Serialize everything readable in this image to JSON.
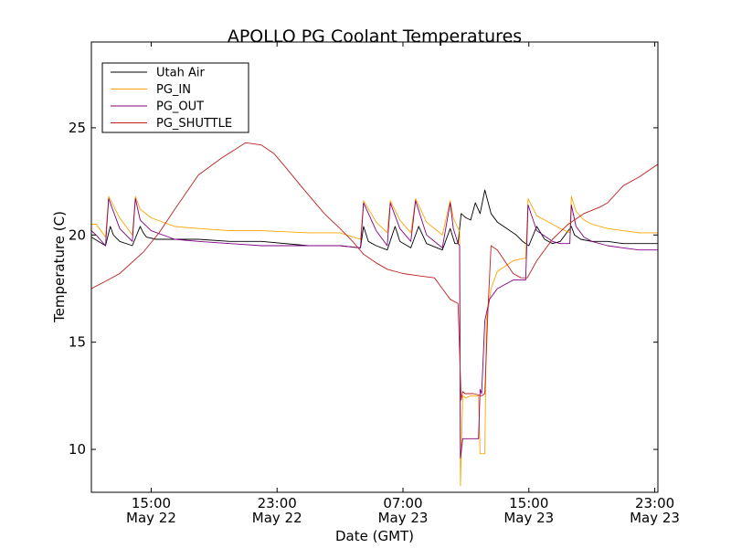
{
  "chart_data": {
    "type": "line",
    "title": "APOLLO PG Coolant Temperatures",
    "xlabel": "Date (GMT)",
    "ylabel": "Temperature (C)",
    "x_unit": "hours since May 22 00:00 GMT",
    "xlim": [
      11.2,
      47.2
    ],
    "ylim": [
      8,
      29
    ],
    "grid": false,
    "legend_position": "top-left",
    "xticks": [
      {
        "value": 15,
        "time": "15:00",
        "date": "May 22"
      },
      {
        "value": 23,
        "time": "23:00",
        "date": "May 22"
      },
      {
        "value": 31,
        "time": "07:00",
        "date": "May 23"
      },
      {
        "value": 39,
        "time": "15:00",
        "date": "May 23"
      },
      {
        "value": 47,
        "time": "23:00",
        "date": "May 23"
      }
    ],
    "yticks": [
      {
        "value": 10,
        "label": "10"
      },
      {
        "value": 15,
        "label": "15"
      },
      {
        "value": 20,
        "label": "20"
      },
      {
        "value": 25,
        "label": "25"
      }
    ],
    "series": [
      {
        "name": "Utah Air",
        "color": "#000000",
        "x": [
          11.2,
          12.1,
          12.4,
          12.6,
          13.0,
          13.8,
          14.3,
          14.5,
          14.7,
          15.3,
          16.5,
          18.0,
          20.0,
          22.0,
          25.0,
          27.0,
          28.3,
          28.5,
          28.8,
          29.3,
          30.0,
          30.5,
          30.8,
          31.5,
          32.0,
          32.5,
          33.5,
          34.0,
          34.3,
          34.5,
          34.7,
          35.0,
          35.3,
          35.6,
          35.9,
          36.2,
          36.6,
          37.0,
          37.6,
          38.2,
          38.6,
          38.8,
          39.0,
          39.5,
          40.0,
          40.5,
          41.0,
          41.7,
          41.9,
          42.3,
          43.0,
          44.0,
          45.0,
          46.0,
          47.2
        ],
        "y": [
          19.9,
          19.5,
          20.4,
          20.0,
          19.7,
          19.5,
          20.4,
          20.1,
          19.9,
          19.8,
          19.8,
          19.8,
          19.7,
          19.7,
          19.5,
          19.5,
          19.4,
          20.4,
          19.7,
          19.5,
          19.3,
          20.4,
          19.7,
          19.4,
          20.4,
          19.6,
          19.3,
          20.3,
          19.6,
          19.6,
          21.0,
          20.8,
          20.7,
          21.5,
          21.0,
          22.1,
          21.0,
          20.6,
          20.3,
          20.0,
          19.7,
          19.6,
          19.5,
          20.4,
          19.8,
          19.6,
          19.7,
          20.4,
          20.0,
          19.8,
          19.7,
          19.7,
          19.6,
          19.6,
          19.6
        ]
      },
      {
        "name": "PG_IN",
        "color": "#ffa500",
        "x": [
          11.2,
          11.5,
          12.1,
          12.3,
          13.0,
          13.8,
          14.0,
          14.3,
          15.0,
          16.5,
          18.0,
          20.0,
          22.0,
          25.0,
          27.0,
          28.3,
          28.5,
          29.3,
          30.0,
          30.2,
          30.8,
          31.5,
          31.8,
          32.5,
          33.5,
          34.0,
          34.2,
          34.5,
          34.6,
          34.65,
          34.8,
          35.0,
          35.3,
          35.8,
          35.9,
          36.0,
          36.2,
          36.3,
          36.6,
          37.0,
          38.0,
          38.6,
          38.8,
          38.95,
          39.5,
          40.5,
          41.0,
          41.6,
          41.7,
          42.0,
          42.5,
          43.0,
          44.0,
          45.0,
          46.0,
          47.2
        ],
        "y": [
          20.5,
          20.5,
          19.9,
          21.8,
          20.8,
          20.0,
          21.8,
          21.2,
          20.8,
          20.4,
          20.3,
          20.2,
          20.2,
          20.1,
          20.1,
          19.8,
          21.6,
          20.6,
          20.1,
          21.6,
          20.7,
          20.1,
          21.7,
          20.6,
          20.0,
          21.6,
          20.8,
          20.3,
          20.2,
          8.3,
          12.5,
          12.4,
          12.5,
          12.5,
          9.8,
          9.8,
          9.8,
          16.0,
          17.5,
          18.3,
          18.8,
          18.9,
          18.9,
          21.7,
          20.9,
          20.5,
          20.3,
          20.1,
          21.8,
          21.1,
          20.7,
          20.5,
          20.3,
          20.2,
          20.1,
          20.1
        ]
      },
      {
        "name": "PG_OUT",
        "color": "#800080",
        "x": [
          11.2,
          11.5,
          12.1,
          12.3,
          13.0,
          13.8,
          14.0,
          14.3,
          15.0,
          16.5,
          18.0,
          20.0,
          22.0,
          25.0,
          27.0,
          28.3,
          28.5,
          29.3,
          30.0,
          30.2,
          30.8,
          31.5,
          31.8,
          32.5,
          33.5,
          34.0,
          34.2,
          34.5,
          34.6,
          34.65,
          34.8,
          35.0,
          35.3,
          35.8,
          35.9,
          36.0,
          36.2,
          36.5,
          37.0,
          38.0,
          38.6,
          38.8,
          38.95,
          39.5,
          40.5,
          41.0,
          41.6,
          41.7,
          42.0,
          42.5,
          43.0,
          44.0,
          45.0,
          46.0,
          47.2
        ],
        "y": [
          20.2,
          20.0,
          19.5,
          21.7,
          20.3,
          19.7,
          21.7,
          20.7,
          20.2,
          19.8,
          19.7,
          19.6,
          19.5,
          19.5,
          19.5,
          19.4,
          21.5,
          20.2,
          19.5,
          21.5,
          20.3,
          19.7,
          21.6,
          20.0,
          19.4,
          21.5,
          20.3,
          19.6,
          19.5,
          9.6,
          10.5,
          10.5,
          10.5,
          10.5,
          12.8,
          12.6,
          16.0,
          17.0,
          17.5,
          17.9,
          17.9,
          17.9,
          21.4,
          20.2,
          19.7,
          19.6,
          19.6,
          21.4,
          20.4,
          19.9,
          19.7,
          19.5,
          19.4,
          19.3,
          19.3
        ]
      },
      {
        "name": "PG_SHUTTLE",
        "color": "#c02020",
        "x": [
          11.2,
          12.0,
          13.0,
          14.5,
          15.5,
          16.5,
          18.0,
          19.5,
          21.0,
          22.0,
          22.8,
          23.5,
          24.5,
          26.0,
          27.0,
          27.8,
          28.5,
          29.3,
          30.0,
          31.0,
          32.0,
          33.0,
          33.5,
          34.0,
          34.5,
          34.7,
          34.8,
          34.95,
          35.0,
          35.5,
          36.0,
          36.2,
          36.4,
          36.6,
          37.0,
          38.0,
          38.5,
          38.9,
          39.5,
          40.5,
          41.5,
          42.5,
          43.5,
          44.0,
          45.0,
          46.0,
          47.2
        ],
        "y": [
          17.5,
          17.8,
          18.2,
          19.2,
          20.1,
          21.2,
          22.8,
          23.6,
          24.3,
          24.2,
          23.8,
          23.2,
          22.3,
          21.0,
          20.3,
          19.7,
          19.1,
          18.7,
          18.4,
          18.2,
          18.1,
          18.0,
          17.5,
          17.0,
          16.8,
          12.3,
          12.7,
          12.6,
          12.6,
          12.6,
          12.5,
          12.6,
          16.5,
          19.5,
          19.3,
          18.2,
          18.0,
          18.0,
          18.8,
          19.8,
          20.5,
          21.0,
          21.3,
          21.5,
          22.3,
          22.7,
          23.3
        ]
      }
    ]
  }
}
